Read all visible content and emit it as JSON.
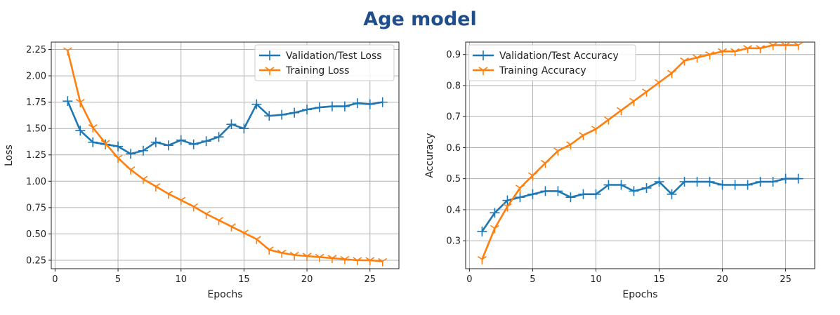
{
  "page_title": "Age model",
  "colors": {
    "series_blue": "#1f77b4",
    "series_orange": "#ff7f0e",
    "title": "#1f4e8c",
    "grid": "#b0b0b0"
  },
  "chart_data": [
    {
      "type": "line",
      "title": "",
      "xlabel": "Epochs",
      "ylabel": "Loss",
      "xlim": [
        -0.3,
        27.3
      ],
      "ylim": [
        0.17,
        2.32
      ],
      "xticks": [
        0,
        5,
        10,
        15,
        20,
        25
      ],
      "yticks": [
        0.25,
        0.5,
        0.75,
        1.0,
        1.25,
        1.5,
        1.75,
        2.0,
        2.25
      ],
      "ytick_labels": [
        "0.25",
        "0.50",
        "0.75",
        "1.00",
        "1.25",
        "1.50",
        "1.75",
        "2.00",
        "2.25"
      ],
      "grid": true,
      "legend_position": "top-right",
      "x": [
        1,
        2,
        3,
        4,
        5,
        6,
        7,
        8,
        9,
        10,
        11,
        12,
        13,
        14,
        15,
        16,
        17,
        18,
        19,
        20,
        21,
        22,
        23,
        24,
        25,
        26
      ],
      "series": [
        {
          "name": "Validation/Test Loss",
          "color": "#1f77b4",
          "marker": "+",
          "values": [
            1.76,
            1.48,
            1.37,
            1.35,
            1.33,
            1.26,
            1.29,
            1.37,
            1.34,
            1.39,
            1.35,
            1.38,
            1.42,
            1.54,
            1.5,
            1.73,
            1.62,
            1.63,
            1.65,
            1.68,
            1.7,
            1.71,
            1.71,
            1.74,
            1.73,
            1.75
          ]
        },
        {
          "name": "Training Loss",
          "color": "#ff7f0e",
          "marker": "tri",
          "values": [
            2.24,
            1.75,
            1.51,
            1.36,
            1.22,
            1.11,
            1.02,
            0.95,
            0.88,
            0.82,
            0.76,
            0.69,
            0.63,
            0.57,
            0.51,
            0.45,
            0.35,
            0.32,
            0.3,
            0.29,
            0.28,
            0.27,
            0.26,
            0.25,
            0.25,
            0.24
          ]
        }
      ]
    },
    {
      "type": "line",
      "title": "",
      "xlabel": "Epochs",
      "ylabel": "Accuracy",
      "xlim": [
        -0.3,
        27.3
      ],
      "ylim": [
        0.21,
        0.94
      ],
      "xticks": [
        0,
        5,
        10,
        15,
        20,
        25
      ],
      "yticks": [
        0.3,
        0.4,
        0.5,
        0.6,
        0.7,
        0.8,
        0.9
      ],
      "ytick_labels": [
        "0.3",
        "0.4",
        "0.5",
        "0.6",
        "0.7",
        "0.8",
        "0.9"
      ],
      "grid": true,
      "legend_position": "top-left",
      "x": [
        1,
        2,
        3,
        4,
        5,
        6,
        7,
        8,
        9,
        10,
        11,
        12,
        13,
        14,
        15,
        16,
        17,
        18,
        19,
        20,
        21,
        22,
        23,
        24,
        25,
        26
      ],
      "series": [
        {
          "name": "Validation/Test Accuracy",
          "color": "#1f77b4",
          "marker": "+",
          "values": [
            0.33,
            0.39,
            0.43,
            0.44,
            0.45,
            0.46,
            0.46,
            0.44,
            0.45,
            0.45,
            0.48,
            0.48,
            0.46,
            0.47,
            0.49,
            0.45,
            0.49,
            0.49,
            0.49,
            0.48,
            0.48,
            0.48,
            0.49,
            0.49,
            0.5,
            0.5
          ]
        },
        {
          "name": "Training Accuracy",
          "color": "#ff7f0e",
          "marker": "tri",
          "values": [
            0.24,
            0.34,
            0.41,
            0.47,
            0.51,
            0.55,
            0.59,
            0.61,
            0.64,
            0.66,
            0.69,
            0.72,
            0.75,
            0.78,
            0.81,
            0.84,
            0.88,
            0.89,
            0.9,
            0.91,
            0.91,
            0.92,
            0.92,
            0.93,
            0.93,
            0.93
          ]
        }
      ]
    }
  ]
}
